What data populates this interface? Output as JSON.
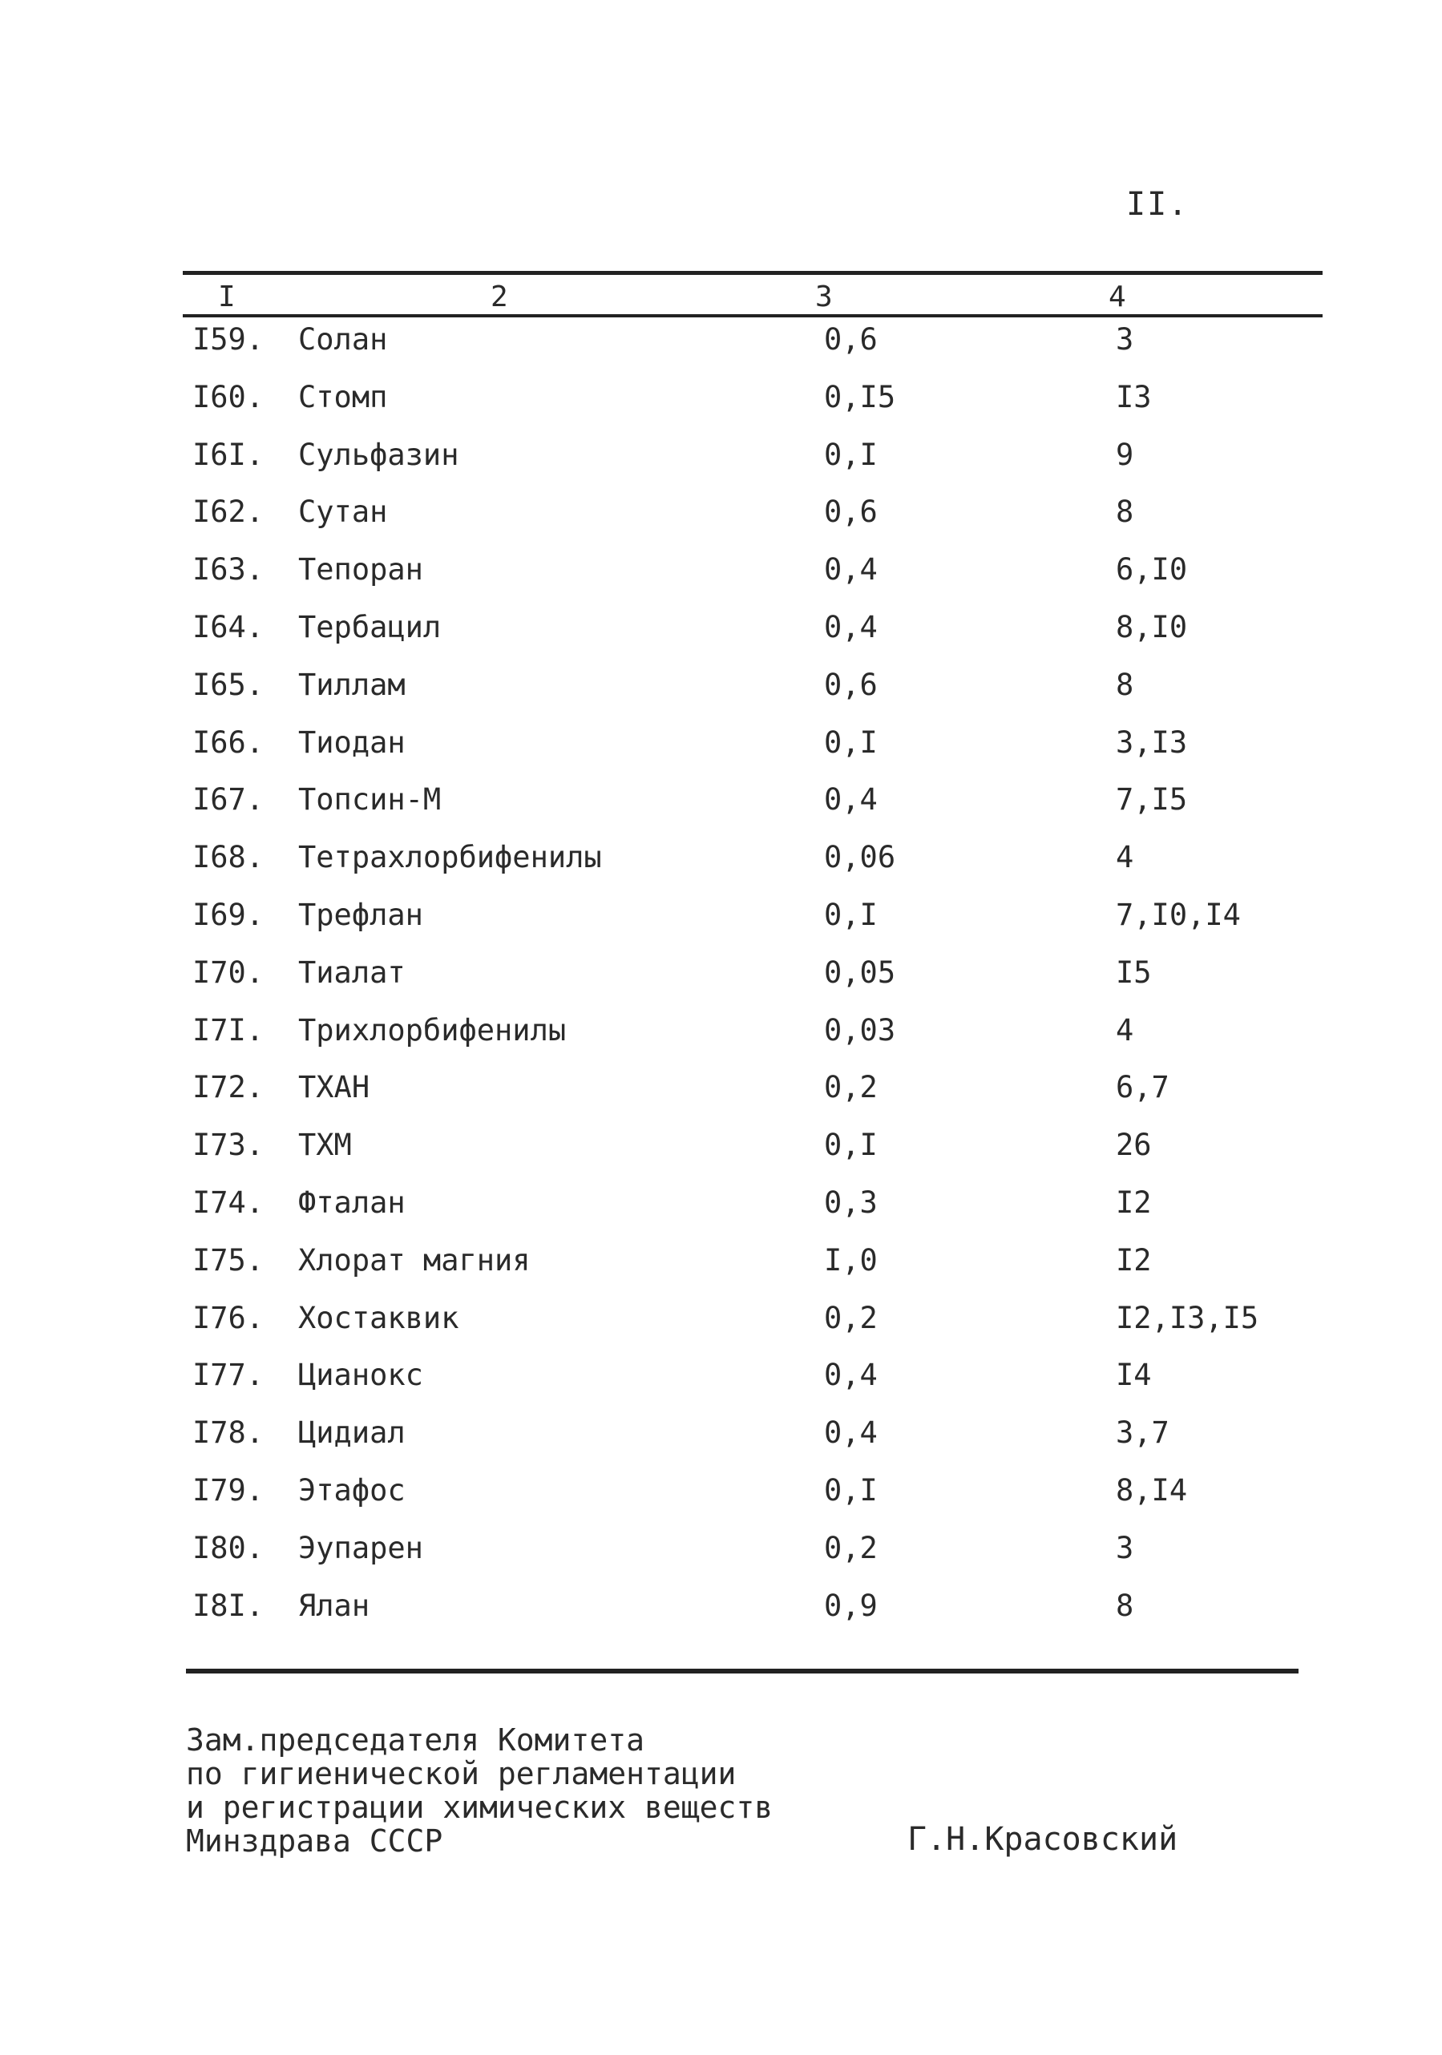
{
  "page_number": "II.",
  "columns": [
    "I",
    "2",
    "3",
    "4"
  ],
  "rows": [
    {
      "num": "I59.",
      "name": "Солан",
      "value": "0,6",
      "ref": "3"
    },
    {
      "num": "I60.",
      "name": "Стомп",
      "value": "0,I5",
      "ref": "I3"
    },
    {
      "num": "I6I.",
      "name": "Сульфазин",
      "value": "0,I",
      "ref": "9"
    },
    {
      "num": "I62.",
      "name": "Сутан",
      "value": "0,6",
      "ref": "8"
    },
    {
      "num": "I63.",
      "name": "Тепоран",
      "value": "0,4",
      "ref": "6,I0"
    },
    {
      "num": "I64.",
      "name": "Тербацил",
      "value": "0,4",
      "ref": "8,I0"
    },
    {
      "num": "I65.",
      "name": "Тиллам",
      "value": "0,6",
      "ref": "8"
    },
    {
      "num": "I66.",
      "name": "Тиодан",
      "value": "0,I",
      "ref": "3,I3"
    },
    {
      "num": "I67.",
      "name": "Топсин-М",
      "value": "0,4",
      "ref": "7,I5"
    },
    {
      "num": "I68.",
      "name": "Тетрахлорбифенилы",
      "value": "0,06",
      "ref": "4"
    },
    {
      "num": "I69.",
      "name": "Трефлан",
      "value": "0,I",
      "ref": "7,I0,I4"
    },
    {
      "num": "I70.",
      "name": "Тиалат",
      "value": "0,05",
      "ref": "I5"
    },
    {
      "num": "I7I.",
      "name": "Трихлорбифенилы",
      "value": "0,03",
      "ref": "4"
    },
    {
      "num": "I72.",
      "name": "ТХАН",
      "value": "0,2",
      "ref": "6,7"
    },
    {
      "num": "I73.",
      "name": "ТХМ",
      "value": "0,I",
      "ref": "26"
    },
    {
      "num": "I74.",
      "name": "Фталан",
      "value": "0,3",
      "ref": "I2"
    },
    {
      "num": "I75.",
      "name": "Хлорат магния",
      "value": "I,0",
      "ref": "I2"
    },
    {
      "num": "I76.",
      "name": "Хостаквик",
      "value": "0,2",
      "ref": "I2,I3,I5"
    },
    {
      "num": "I77.",
      "name": "Цианокс",
      "value": "0,4",
      "ref": "I4"
    },
    {
      "num": "I78.",
      "name": "Цидиал",
      "value": "0,4",
      "ref": "3,7"
    },
    {
      "num": "I79.",
      "name": "Этафос",
      "value": "0,I",
      "ref": "8,I4"
    },
    {
      "num": "I80.",
      "name": "Эупарен",
      "value": "0,2",
      "ref": "3"
    },
    {
      "num": "I8I.",
      "name": "Ялан",
      "value": "0,9",
      "ref": "8"
    }
  ],
  "signature": {
    "lines": [
      "Зам.председателя Комитета",
      "по гигиенической регламентации",
      "и регистрации химических веществ",
      "Минздрава СССР"
    ],
    "name": "Г.Н.Красовский"
  }
}
